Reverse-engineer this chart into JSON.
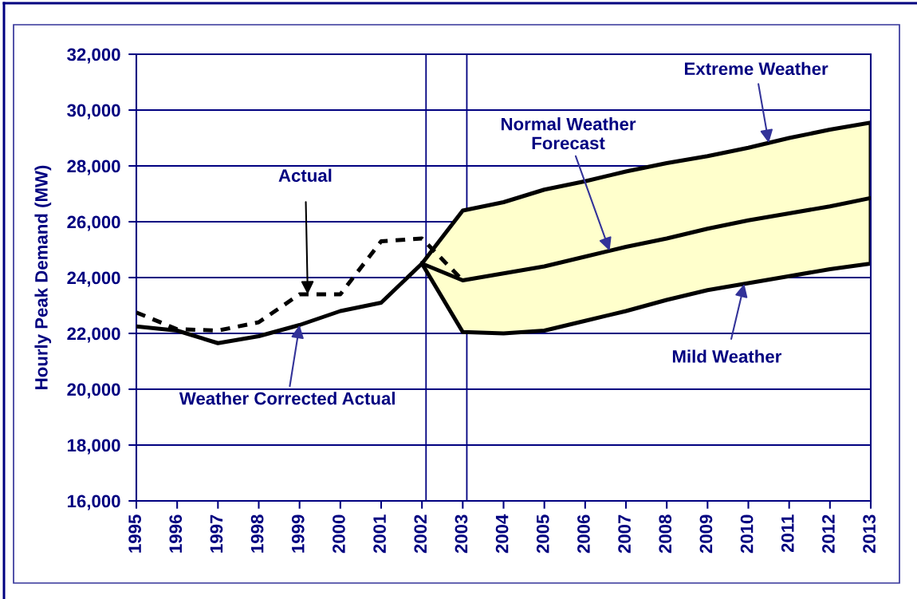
{
  "chart_data": {
    "type": "line",
    "ylabel": "Hourly Peak Demand (MW)",
    "xlim": [
      1995,
      2013
    ],
    "xticks": [
      1995,
      1996,
      1997,
      1998,
      1999,
      2000,
      2001,
      2002,
      2003,
      2004,
      2005,
      2006,
      2007,
      2008,
      2009,
      2010,
      2011,
      2012,
      2013
    ],
    "ylim": [
      16000,
      32000
    ],
    "yticks": [
      {
        "value": 16000,
        "label": "16,000"
      },
      {
        "value": 18000,
        "label": "18,000"
      },
      {
        "value": 20000,
        "label": "20,000"
      },
      {
        "value": 22000,
        "label": "22,000"
      },
      {
        "value": 24000,
        "label": "24,000"
      },
      {
        "value": 26000,
        "label": "26,000"
      },
      {
        "value": 28000,
        "label": "28,000"
      },
      {
        "value": 30000,
        "label": "30,000"
      },
      {
        "value": 32000,
        "label": "32,000"
      }
    ],
    "grid": "y",
    "legend": false,
    "series": [
      {
        "x": [
          1995,
          1996,
          1997,
          1998,
          1999,
          2000,
          2001,
          2002,
          2003
        ],
        "values": [
          22750,
          22150,
          22100,
          22400,
          23400,
          23400,
          25300,
          25400,
          23900
        ],
        "color": "#000000",
        "line_style": "dashed"
      },
      {
        "x": [
          1995,
          1996,
          1997,
          1998,
          1999,
          2000,
          2001,
          2002
        ],
        "values": [
          22250,
          22100,
          21650,
          21900,
          22300,
          22800,
          23100,
          24500
        ],
        "color": "#000000",
        "line_style": "solid"
      },
      {
        "x": [
          2002,
          2003,
          2004,
          2005,
          2006,
          2007,
          2008,
          2009,
          2010,
          2011,
          2012,
          2013
        ],
        "values": [
          24500,
          23900,
          24150,
          24400,
          24750,
          25100,
          25400,
          25750,
          26050,
          26300,
          26550,
          26850
        ],
        "lower": [
          24500,
          22050,
          22000,
          22100,
          22450,
          22800,
          23200,
          23550,
          23800,
          24050,
          24300,
          24500
        ],
        "upper": [
          24500,
          26400,
          26700,
          27150,
          27450,
          27800,
          28100,
          28350,
          28650,
          29000,
          29300,
          29550
        ],
        "color": "#000000",
        "line_style": "solid"
      }
    ],
    "ref_lines": [
      {
        "axis": "x",
        "value": 2002.1,
        "color": "#000080"
      },
      {
        "axis": "x",
        "value": 2003.1,
        "color": "#000080"
      }
    ],
    "annotations": [
      {
        "text": "Actual",
        "x": 1999.2,
        "y": 23400
      },
      {
        "text": "Weather Corrected Actual",
        "x": 1999,
        "y": 22300
      },
      {
        "text": "Normal Weather\nForecast",
        "x": 2006.6,
        "y": 24960
      },
      {
        "text": "Extreme Weather",
        "x": 2010.5,
        "y": 28825
      },
      {
        "text": "Mild Weather",
        "x": 2009.9,
        "y": 23775
      }
    ]
  }
}
